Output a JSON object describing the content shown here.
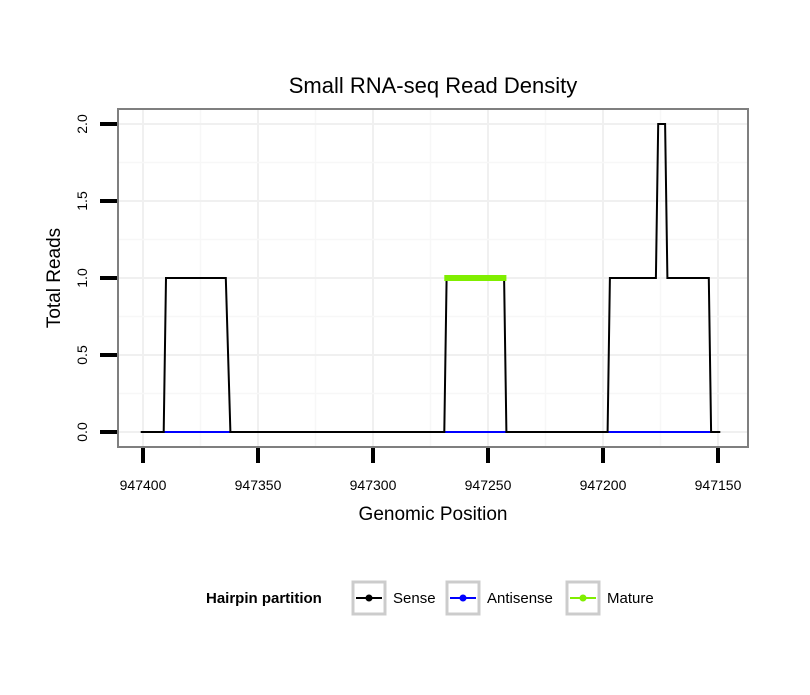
{
  "chart_data": {
    "type": "line",
    "title": "Small RNA-seq Read Density",
    "xlabel": "Genomic Position",
    "ylabel": "Total Reads",
    "x_reversed": true,
    "xlim": [
      947400,
      947150
    ],
    "ylim": [
      0,
      2
    ],
    "x_ticks": [
      947400,
      947350,
      947300,
      947250,
      947200,
      947150
    ],
    "x_tick_labels": [
      "947400",
      "947350",
      "947300",
      "947250",
      "947200",
      "947150"
    ],
    "y_ticks": [
      0,
      0.5,
      1,
      1.5,
      2
    ],
    "y_tick_labels": [
      "0.0",
      "0.5",
      "1.0",
      "1.5",
      "2.0"
    ],
    "grid": true,
    "legend": {
      "title": "Hairpin partition",
      "position": "bottom",
      "items": [
        "Sense",
        "Antisense",
        "Mature"
      ]
    },
    "series": [
      {
        "name": "Sense",
        "color": "#000000",
        "x": [
          947401,
          947391,
          947390,
          947364,
          947362,
          947269,
          947268,
          947243,
          947242,
          947198,
          947197,
          947177,
          947176,
          947173,
          947172,
          947168,
          947167,
          947154,
          947153,
          947149
        ],
        "y": [
          0,
          0,
          1,
          1,
          0,
          0,
          1,
          1,
          0,
          0,
          1,
          1,
          2,
          2,
          1,
          1,
          1,
          1,
          0,
          0
        ]
      },
      {
        "name": "Antisense",
        "color": "#0000ff",
        "x": [
          947391,
          947363,
          947268,
          947243,
          947197,
          947153
        ],
        "y": [
          0,
          0,
          0,
          0,
          0,
          0
        ]
      },
      {
        "name": "Mature",
        "color": "#80ee00",
        "x": [
          947269,
          947242
        ],
        "y": [
          1,
          1
        ]
      }
    ]
  }
}
